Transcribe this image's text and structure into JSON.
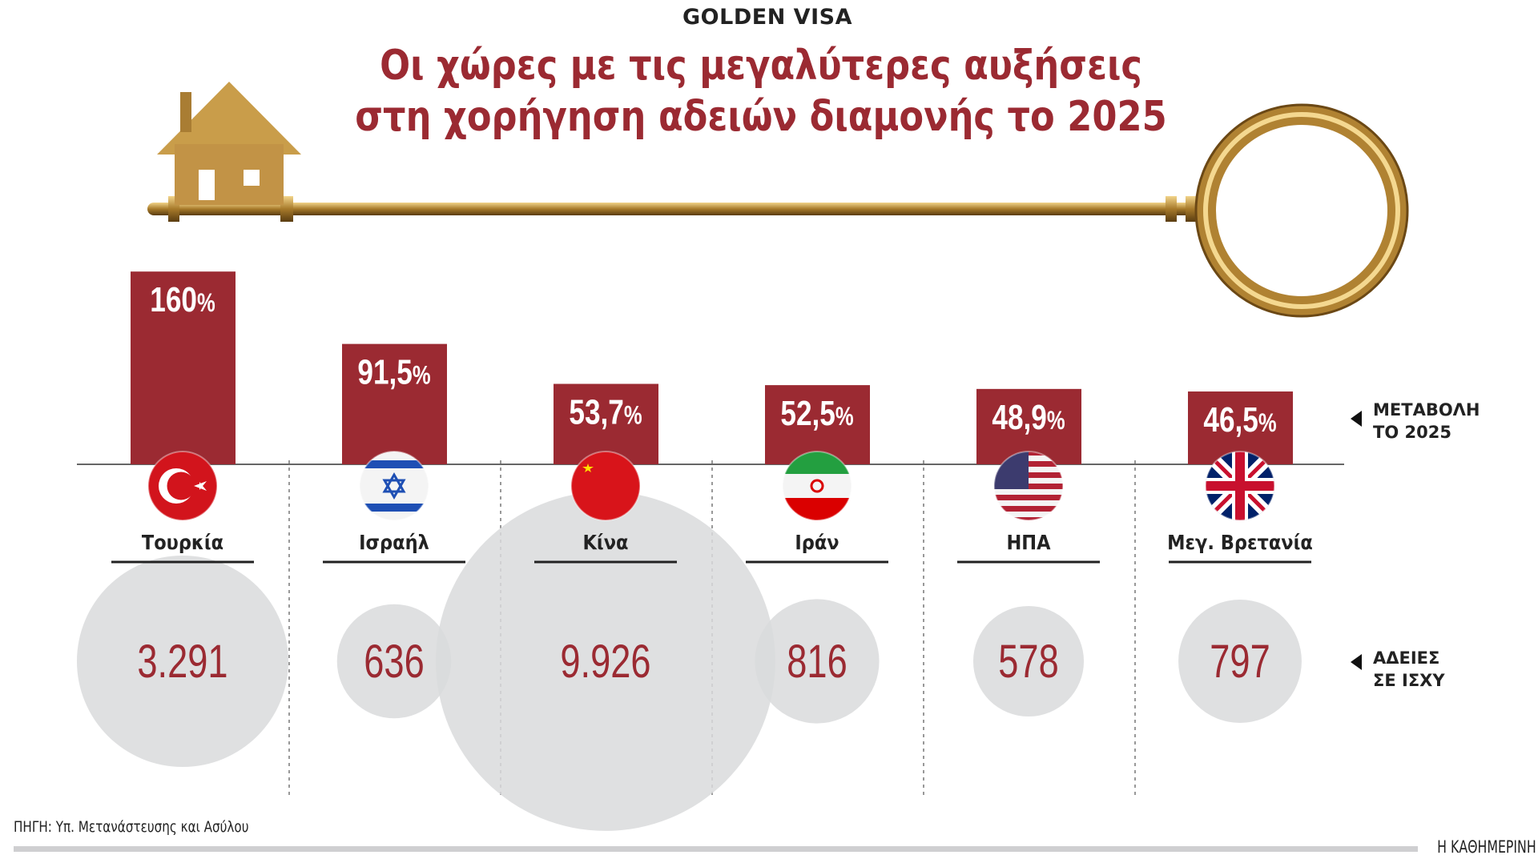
{
  "kicker": "GOLDEN VISA",
  "title_line1": "Οι χώρες με τις μεγαλύτερες αυξήσεις",
  "title_line2": "στη χορήγηση αδειών διαμονής το 2025",
  "legend": {
    "change_line1": "ΜΕΤΑΒΟΛΗ",
    "change_line2": "ΤΟ 2025",
    "permits_line1": "ΑΔΕΙΕΣ",
    "permits_line2": "ΣΕ ΙΣΧΥ"
  },
  "source": "ΠΗΓΗ: Υπ. Μετανάστευσης και Ασύλου",
  "brand": "Η ΚΑΘΗΜΕΡΙΝΗ",
  "colors": {
    "bar": "#9b2a32",
    "bubble": "#d9dadc",
    "bubble_text": "#9b2a32"
  },
  "chart_data": {
    "type": "bar",
    "categories": [
      "Τουρκία",
      "Ισραήλ",
      "Κίνα",
      "Ιράν",
      "ΗΠΑ",
      "Μεγ. Βρετανία"
    ],
    "flags": [
      "turkey-flag",
      "israel-flag",
      "china-flag",
      "iran-flag",
      "usa-flag",
      "uk-flag"
    ],
    "series": [
      {
        "name": "ΜΕΤΑΒΟΛΗ ΤΟ 2025",
        "values": [
          160,
          91.5,
          53.7,
          52.5,
          48.9,
          46.5
        ],
        "labels": [
          "160",
          "91,5",
          "53,7",
          "52,5",
          "48,9",
          "46,5"
        ],
        "unit": "%"
      },
      {
        "name": "ΑΔΕΙΕΣ ΣΕ ΙΣΧΥ",
        "values": [
          3291,
          636,
          9926,
          816,
          578,
          797
        ],
        "labels": [
          "3.291",
          "636",
          "9.926",
          "816",
          "578",
          "797"
        ]
      }
    ]
  }
}
